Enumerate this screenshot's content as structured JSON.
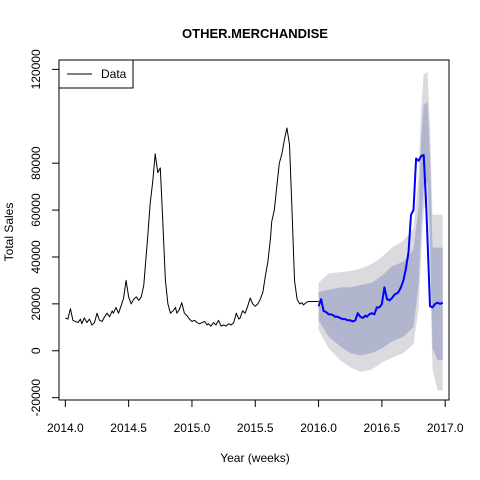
{
  "chart_data": {
    "type": "line",
    "title": "OTHER.MERCHANDISE",
    "xlabel": "Year (weeks)",
    "ylabel": "Total Sales",
    "xlim": [
      2013.95,
      2017.03
    ],
    "ylim": [
      -21000,
      124000
    ],
    "x_ticks": [
      2014.0,
      2014.5,
      2015.0,
      2015.5,
      2016.0,
      2016.5,
      2017.0
    ],
    "x_tick_labels": [
      "2014.0",
      "2014.5",
      "2015.0",
      "2015.5",
      "2016.0",
      "2016.5",
      "2017.0"
    ],
    "y_ticks": [
      -20000,
      0,
      20000,
      40000,
      60000,
      80000,
      120000
    ],
    "y_tick_labels": [
      "-20000",
      "0",
      "20000",
      "40000",
      "60000",
      "80000",
      "120000"
    ],
    "legend": {
      "position": "top-left",
      "entries": [
        "Data"
      ]
    },
    "colors": {
      "data": "#000000",
      "forecast": "#0000ff",
      "band80": "#b1b5ce",
      "band95": "#dbdbdf"
    },
    "series": [
      {
        "name": "Data",
        "x": [
          2014.0,
          2014.02,
          2014.04,
          2014.06,
          2014.08,
          2014.1,
          2014.12,
          2014.13,
          2014.15,
          2014.17,
          2014.19,
          2014.21,
          2014.23,
          2014.25,
          2014.27,
          2014.29,
          2014.31,
          2014.33,
          2014.35,
          2014.37,
          2014.38,
          2014.4,
          2014.42,
          2014.44,
          2014.46,
          2014.48,
          2014.5,
          2014.52,
          2014.54,
          2014.56,
          2014.58,
          2014.6,
          2014.62,
          2014.63,
          2014.65,
          2014.67,
          2014.69,
          2014.71,
          2014.73,
          2014.75,
          2014.77,
          2014.79,
          2014.81,
          2014.83,
          2014.85,
          2014.87,
          2014.88,
          2014.9,
          2014.92,
          2014.94,
          2014.96,
          2014.98,
          2015.0,
          2015.02,
          2015.04,
          2015.06,
          2015.08,
          2015.1,
          2015.12,
          2015.13,
          2015.15,
          2015.17,
          2015.19,
          2015.21,
          2015.23,
          2015.25,
          2015.27,
          2015.29,
          2015.31,
          2015.33,
          2015.35,
          2015.37,
          2015.38,
          2015.4,
          2015.42,
          2015.44,
          2015.46,
          2015.48,
          2015.5,
          2015.52,
          2015.54,
          2015.56,
          2015.58,
          2015.6,
          2015.62,
          2015.63,
          2015.65,
          2015.67,
          2015.69,
          2015.71,
          2015.73,
          2015.75,
          2015.77,
          2015.79,
          2015.81,
          2015.83,
          2015.85,
          2015.87,
          2015.88,
          2015.9,
          2015.92,
          2015.94,
          2015.96,
          2015.98,
          2016.0
        ],
        "y": [
          14000,
          13500,
          18000,
          13000,
          12500,
          12000,
          13500,
          11500,
          14000,
          12000,
          13500,
          11000,
          12000,
          16000,
          13000,
          12500,
          14500,
          16000,
          14500,
          17000,
          16000,
          18500,
          16000,
          19000,
          22500,
          30000,
          23000,
          20000,
          22000,
          23000,
          21500,
          23000,
          28000,
          35000,
          48000,
          63000,
          72000,
          84000,
          76000,
          78000,
          55000,
          30000,
          20000,
          16000,
          17000,
          18500,
          16000,
          17500,
          20500,
          16000,
          15000,
          13500,
          12500,
          13000,
          12000,
          11500,
          12000,
          12500,
          11000,
          11500,
          10500,
          12000,
          11000,
          13000,
          10500,
          11000,
          10500,
          11500,
          11000,
          12000,
          16000,
          13500,
          14000,
          17000,
          16000,
          19000,
          22500,
          20000,
          19000,
          20000,
          22000,
          25000,
          32000,
          38000,
          48000,
          55000,
          60000,
          70000,
          80000,
          84000,
          90000,
          95000,
          88000,
          60000,
          30000,
          22000,
          20000,
          20500,
          19500,
          20500,
          21000,
          21000,
          21000,
          21000,
          21000
        ]
      },
      {
        "name": "",
        "x": [
          2016.0,
          2016.02,
          2016.04,
          2016.06,
          2016.08,
          2016.1,
          2016.12,
          2016.13,
          2016.15,
          2016.17,
          2016.19,
          2016.21,
          2016.23,
          2016.25,
          2016.27,
          2016.29,
          2016.31,
          2016.33,
          2016.35,
          2016.37,
          2016.38,
          2016.4,
          2016.42,
          2016.44,
          2016.46,
          2016.48,
          2016.5,
          2016.52,
          2016.54,
          2016.56,
          2016.58,
          2016.6,
          2016.62,
          2016.63,
          2016.65,
          2016.67,
          2016.69,
          2016.71,
          2016.73,
          2016.75,
          2016.77,
          2016.79,
          2016.81,
          2016.83,
          2016.85,
          2016.87,
          2016.88,
          2016.9,
          2016.92,
          2016.94,
          2016.96,
          2016.98
        ],
        "y": [
          19000,
          22000,
          17000,
          16500,
          15500,
          15500,
          15000,
          14500,
          14500,
          14000,
          13500,
          13500,
          13000,
          13000,
          12500,
          13000,
          16000,
          14500,
          14000,
          15000,
          14500,
          15500,
          16000,
          15500,
          18500,
          18500,
          20000,
          27000,
          22000,
          21500,
          22500,
          24000,
          24500,
          25000,
          27000,
          30000,
          35000,
          42000,
          58000,
          60000,
          82000,
          81000,
          83000,
          83500,
          62000,
          34000,
          19000,
          18500,
          20000,
          20500,
          20000,
          20500
        ]
      }
    ],
    "bands": [
      {
        "level": "95",
        "x": [
          2016.0,
          2016.08,
          2016.17,
          2016.25,
          2016.33,
          2016.42,
          2016.5,
          2016.58,
          2016.67,
          2016.75,
          2016.79,
          2016.81,
          2016.83,
          2016.86,
          2016.88,
          2016.9,
          2016.94,
          2016.98
        ],
        "lower": [
          9000,
          1000,
          -4000,
          -7000,
          -9000,
          -8000,
          -5000,
          -3000,
          -1000,
          3000,
          18000,
          40000,
          60000,
          65000,
          35000,
          -8000,
          -17000,
          -17000
        ],
        "upper": [
          29000,
          33000,
          33500,
          34000,
          35000,
          37000,
          40000,
          44000,
          47000,
          52000,
          75000,
          103000,
          118000,
          119000,
          96000,
          58000,
          58000,
          58000
        ]
      },
      {
        "level": "80",
        "x": [
          2016.0,
          2016.08,
          2016.17,
          2016.25,
          2016.33,
          2016.42,
          2016.5,
          2016.58,
          2016.67,
          2016.75,
          2016.79,
          2016.81,
          2016.83,
          2016.86,
          2016.88,
          2016.9,
          2016.94,
          2016.98
        ],
        "lower": [
          13000,
          6000,
          2000,
          -1000,
          -2000,
          -1000,
          1000,
          4000,
          6000,
          10000,
          28000,
          53000,
          70000,
          72000,
          48000,
          1000,
          -4000,
          -4000
        ],
        "upper": [
          25000,
          26000,
          27000,
          27000,
          28000,
          29000,
          32000,
          36000,
          38000,
          43000,
          62000,
          90000,
          105000,
          106000,
          82000,
          44000,
          44000,
          44000
        ]
      }
    ]
  }
}
